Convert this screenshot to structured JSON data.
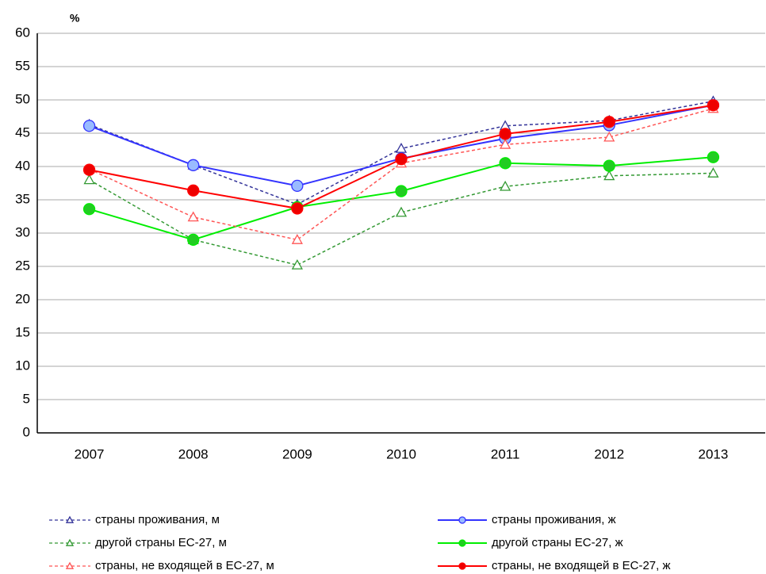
{
  "chart_data": {
    "type": "line",
    "ylabel": "%",
    "categories": [
      "2007",
      "2008",
      "2009",
      "2010",
      "2011",
      "2012",
      "2013"
    ],
    "ylim": [
      0,
      60
    ],
    "yticks": [
      0,
      5,
      10,
      15,
      20,
      25,
      30,
      35,
      40,
      45,
      50,
      55,
      60
    ],
    "grid": true,
    "legend": "bottom",
    "series": [
      {
        "name": "страны проживания, м",
        "color": "#333399",
        "marker_fill": "#ffffff",
        "linestyle": "dashed",
        "marker": "triangle",
        "values": [
          46.3,
          40.2,
          34.3,
          42.7,
          46.1,
          46.9,
          49.8
        ]
      },
      {
        "name": "страны проживания, ж",
        "color": "#3333ff",
        "marker_fill": "#99bbff",
        "linestyle": "solid",
        "marker": "circle",
        "values": [
          46.1,
          40.2,
          37.1,
          41.2,
          44.2,
          46.2,
          49.2
        ]
      },
      {
        "name": "другой страны ЕС-27,  м",
        "color": "#339933",
        "marker_fill": "#ffffff",
        "linestyle": "dashed",
        "marker": "triangle",
        "values": [
          38.0,
          29.0,
          25.2,
          33.1,
          37.0,
          38.6,
          39.0
        ]
      },
      {
        "name": "другой страны ЕС-27,  ж",
        "color": "#00ee00",
        "marker_fill": "#22cc22",
        "linestyle": "solid",
        "marker": "circle",
        "values": [
          33.6,
          29.0,
          33.9,
          36.3,
          40.5,
          40.1,
          41.4
        ]
      },
      {
        "name": "страны, не входящей в ЕС-27,  м",
        "color": "#ff5555",
        "marker_fill": "#ffffff",
        "linestyle": "dashed",
        "marker": "triangle",
        "values": [
          39.6,
          32.4,
          29.0,
          40.5,
          43.3,
          44.4,
          48.7
        ]
      },
      {
        "name": "страны, не входящей в ЕС-27,  ж",
        "color": "#ff0000",
        "marker_fill": "#ee0000",
        "linestyle": "solid",
        "marker": "circle",
        "values": [
          39.5,
          36.4,
          33.7,
          41.1,
          44.9,
          46.7,
          49.2
        ]
      }
    ]
  }
}
